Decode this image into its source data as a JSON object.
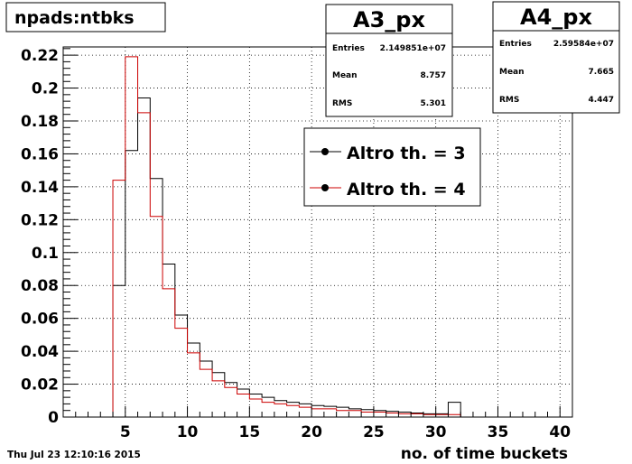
{
  "title": "npads:ntbks",
  "date_stamp": "Thu Jul 23 12:10:16 2015",
  "stat_boxes": [
    {
      "name": "A3_px",
      "entries_label": "Entries",
      "entries_value": "2.149851e+07",
      "mean_label": "Mean",
      "mean_value": "8.757",
      "rms_label": "RMS",
      "rms_value": "5.301"
    },
    {
      "name": "A4_px",
      "entries_label": "Entries",
      "entries_value": "2.59584e+07",
      "mean_label": "Mean",
      "mean_value": "7.665",
      "rms_label": "RMS",
      "rms_value": "4.447"
    }
  ],
  "legend": [
    {
      "label": "Altro th. = 3",
      "color": "#000000"
    },
    {
      "label": "Altro th. = 4",
      "color": "#cc0000"
    }
  ],
  "chart_data": {
    "type": "histogram-step",
    "title": "npads:ntbks",
    "xlabel": "no. of time buckets",
    "ylabel": "",
    "xlim": [
      0,
      41
    ],
    "ylim": [
      0,
      0.225
    ],
    "grid": true,
    "x_ticks": [
      5,
      10,
      15,
      20,
      25,
      30,
      35,
      40
    ],
    "y_ticks": [
      0,
      0.02,
      0.04,
      0.06,
      0.08,
      0.1,
      0.12,
      0.14,
      0.16,
      0.18,
      0.2,
      0.22
    ],
    "y_tick_labels": [
      "0",
      "0.02",
      "0.04",
      "0.06",
      "0.08",
      "0.1",
      "0.12",
      "0.14",
      "0.16",
      "0.18",
      "0.2",
      "0.22"
    ],
    "bin_edges": [
      3,
      4,
      5,
      6,
      7,
      8,
      9,
      10,
      11,
      12,
      13,
      14,
      15,
      16,
      17,
      18,
      19,
      20,
      21,
      22,
      23,
      24,
      25,
      26,
      27,
      28,
      29,
      30,
      31,
      32
    ],
    "series": [
      {
        "name": "Altro th. = 3",
        "color": "#000000",
        "values": [
          0,
          0.08,
          0.162,
          0.194,
          0.145,
          0.093,
          0.062,
          0.045,
          0.034,
          0.027,
          0.021,
          0.017,
          0.014,
          0.012,
          0.01,
          0.009,
          0.008,
          0.007,
          0.0065,
          0.006,
          0.005,
          0.0045,
          0.004,
          0.0035,
          0.003,
          0.0025,
          0.002,
          0.002,
          0.009
        ]
      },
      {
        "name": "Altro th. = 4",
        "color": "#cc0000",
        "values": [
          0,
          0.144,
          0.219,
          0.185,
          0.122,
          0.078,
          0.054,
          0.039,
          0.029,
          0.022,
          0.018,
          0.014,
          0.011,
          0.009,
          0.008,
          0.007,
          0.006,
          0.005,
          0.005,
          0.004,
          0.004,
          0.003,
          0.003,
          0.0025,
          0.002,
          0.002,
          0.0015,
          0.0015,
          0.0015
        ]
      }
    ]
  }
}
